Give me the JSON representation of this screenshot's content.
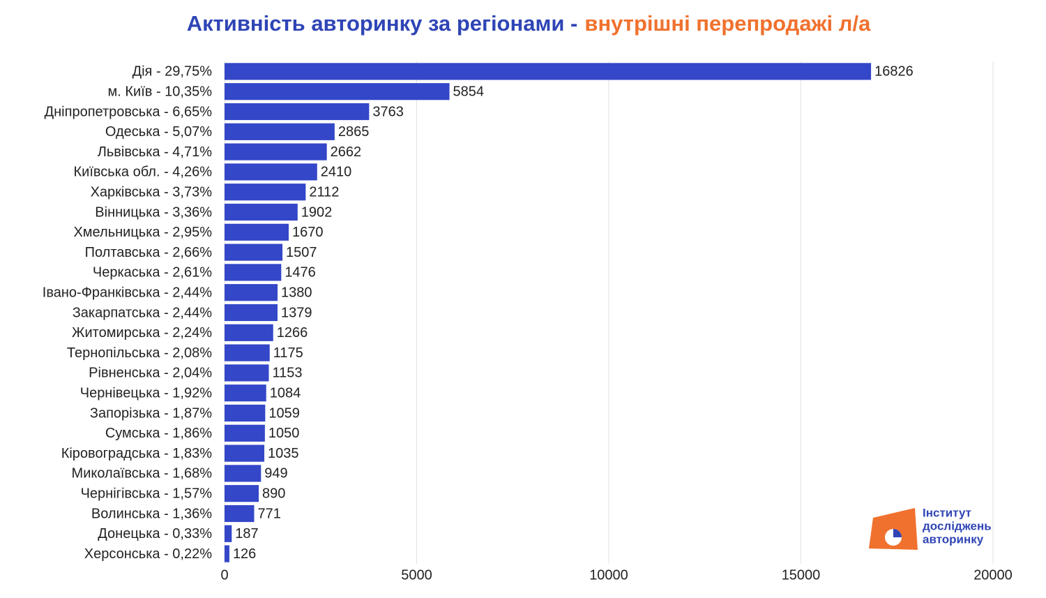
{
  "chart_data": {
    "type": "bar",
    "orientation": "horizontal",
    "title": "Активність авторинку за регіонами -",
    "title_accent": "внутрішні перепродажі л/а",
    "title_color": "#2f45b5",
    "title_accent_color": "#f0712e",
    "categories": [
      "Дія - 29,75%",
      "м. Київ - 10,35%",
      "Дніпропетровська - 6,65%",
      "Одеська - 5,07%",
      "Львівська - 4,71%",
      "Київська обл. - 4,26%",
      "Харківська - 3,73%",
      "Вінницька - 3,36%",
      "Хмельницька - 2,95%",
      "Полтавська - 2,66%",
      "Черкаська - 2,61%",
      "Івано-Франківська - 2,44%",
      "Закарпатська - 2,44%",
      "Житомирська - 2,24%",
      "Тернопільська - 2,08%",
      "Рівненська - 2,04%",
      "Чернівецька - 1,92%",
      "Запорізька - 1,87%",
      "Сумська - 1,86%",
      "Кіровоградська - 1,83%",
      "Миколаївська - 1,68%",
      "Чернігівська - 1,57%",
      "Волинська - 1,36%",
      "Донецька - 0,33%",
      "Херсонська - 0,22%"
    ],
    "values": [
      16826,
      5854,
      3763,
      2865,
      2662,
      2410,
      2112,
      1902,
      1670,
      1507,
      1476,
      1380,
      1379,
      1266,
      1175,
      1153,
      1084,
      1059,
      1050,
      1035,
      949,
      890,
      771,
      187,
      126
    ],
    "color": "#3447c8",
    "xlim": [
      0,
      20000
    ],
    "xticks": [
      0,
      5000,
      10000,
      15000,
      20000
    ],
    "grid": true,
    "logo": [
      "Інститут",
      "досліджень",
      "авторинку"
    ]
  }
}
